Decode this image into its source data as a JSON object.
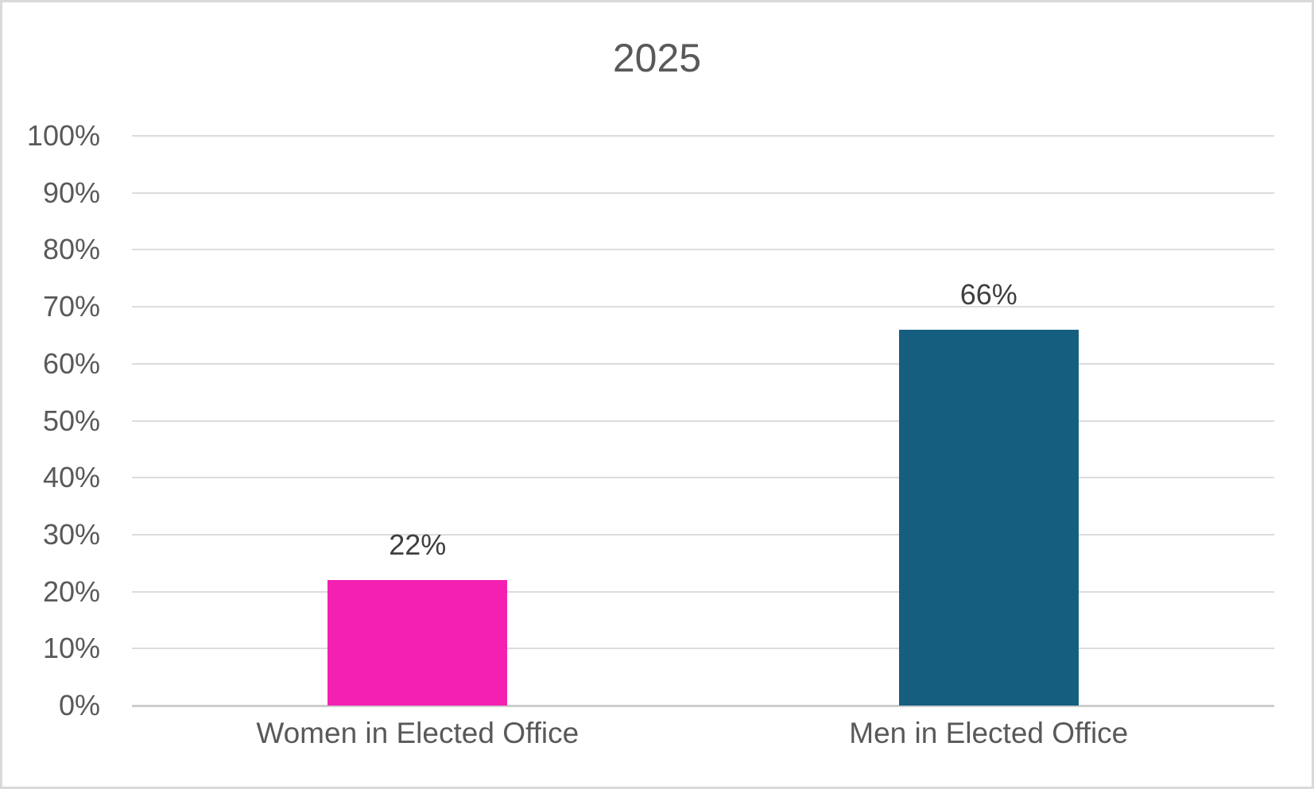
{
  "chart_data": {
    "type": "bar",
    "title": "2025",
    "categories": [
      "Women in Elected Office",
      "Men in Elected Office"
    ],
    "values": [
      22,
      66
    ],
    "data_labels": [
      "22%",
      "66%"
    ],
    "series_colors": [
      "#f320b1",
      "#165e80"
    ],
    "xlabel": "",
    "ylabel": "",
    "ylim": [
      0,
      100
    ],
    "ytick_step": 10,
    "ytick_labels": [
      "0%",
      "10%",
      "20%",
      "30%",
      "40%",
      "50%",
      "60%",
      "70%",
      "80%",
      "90%",
      "100%"
    ],
    "grid": "horizontal-only",
    "legend": "none",
    "data_label_position": "outside-end"
  },
  "colors": {
    "background": "#ffffff",
    "frame_border": "#d9d9d9",
    "title_text": "#595959",
    "axis_tick_text": "#595959",
    "category_text": "#595959",
    "data_label_text": "#3f3f3f",
    "gridline": "#dcdcdc",
    "axis_line": "#cdcdcd",
    "women_bar": "#f320b1",
    "men_bar": "#165e80"
  }
}
